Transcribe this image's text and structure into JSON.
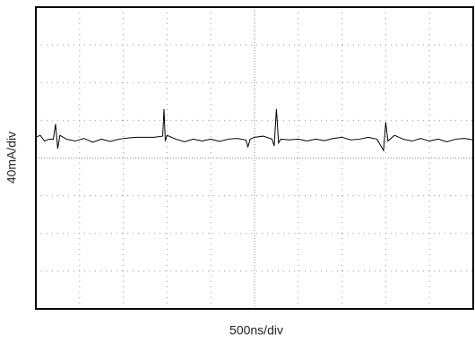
{
  "chart_data": {
    "type": "line",
    "xlabel": "500ns/div",
    "ylabel": "40mA/div",
    "xlim": [
      0,
      10
    ],
    "ylim": [
      -4,
      4
    ],
    "grid": true,
    "x": [
      0,
      0.1,
      0.2,
      0.3,
      0.4,
      0.45,
      0.5,
      0.55,
      0.7,
      0.9,
      1.1,
      1.3,
      1.5,
      1.7,
      1.9,
      2.1,
      2.3,
      2.5,
      2.7,
      2.9,
      2.93,
      2.96,
      3.0,
      3.2,
      3.4,
      3.6,
      3.8,
      4.0,
      4.2,
      4.4,
      4.6,
      4.8,
      4.85,
      4.9,
      5.0,
      5.2,
      5.4,
      5.45,
      5.5,
      5.55,
      5.6,
      5.8,
      6.0,
      6.2,
      6.4,
      6.6,
      6.8,
      7.0,
      7.2,
      7.4,
      7.6,
      7.8,
      7.95,
      8.0,
      8.05,
      8.2,
      8.4,
      8.6,
      8.8,
      9.0,
      9.2,
      9.4,
      9.6,
      9.8,
      10.0
    ],
    "series": [
      {
        "color": "#000000",
        "values": [
          0.55,
          0.6,
          0.45,
          0.5,
          0.5,
          0.9,
          0.25,
          0.6,
          0.5,
          0.45,
          0.52,
          0.42,
          0.5,
          0.44,
          0.5,
          0.53,
          0.55,
          0.55,
          0.55,
          0.58,
          1.3,
          0.45,
          0.6,
          0.5,
          0.43,
          0.5,
          0.45,
          0.5,
          0.44,
          0.5,
          0.52,
          0.48,
          0.3,
          0.5,
          0.55,
          0.58,
          0.5,
          0.32,
          1.3,
          0.4,
          0.5,
          0.48,
          0.5,
          0.45,
          0.5,
          0.46,
          0.52,
          0.55,
          0.48,
          0.5,
          0.55,
          0.5,
          0.2,
          0.95,
          0.45,
          0.6,
          0.5,
          0.45,
          0.52,
          0.45,
          0.5,
          0.43,
          0.5,
          0.52,
          0.48
        ]
      }
    ]
  }
}
